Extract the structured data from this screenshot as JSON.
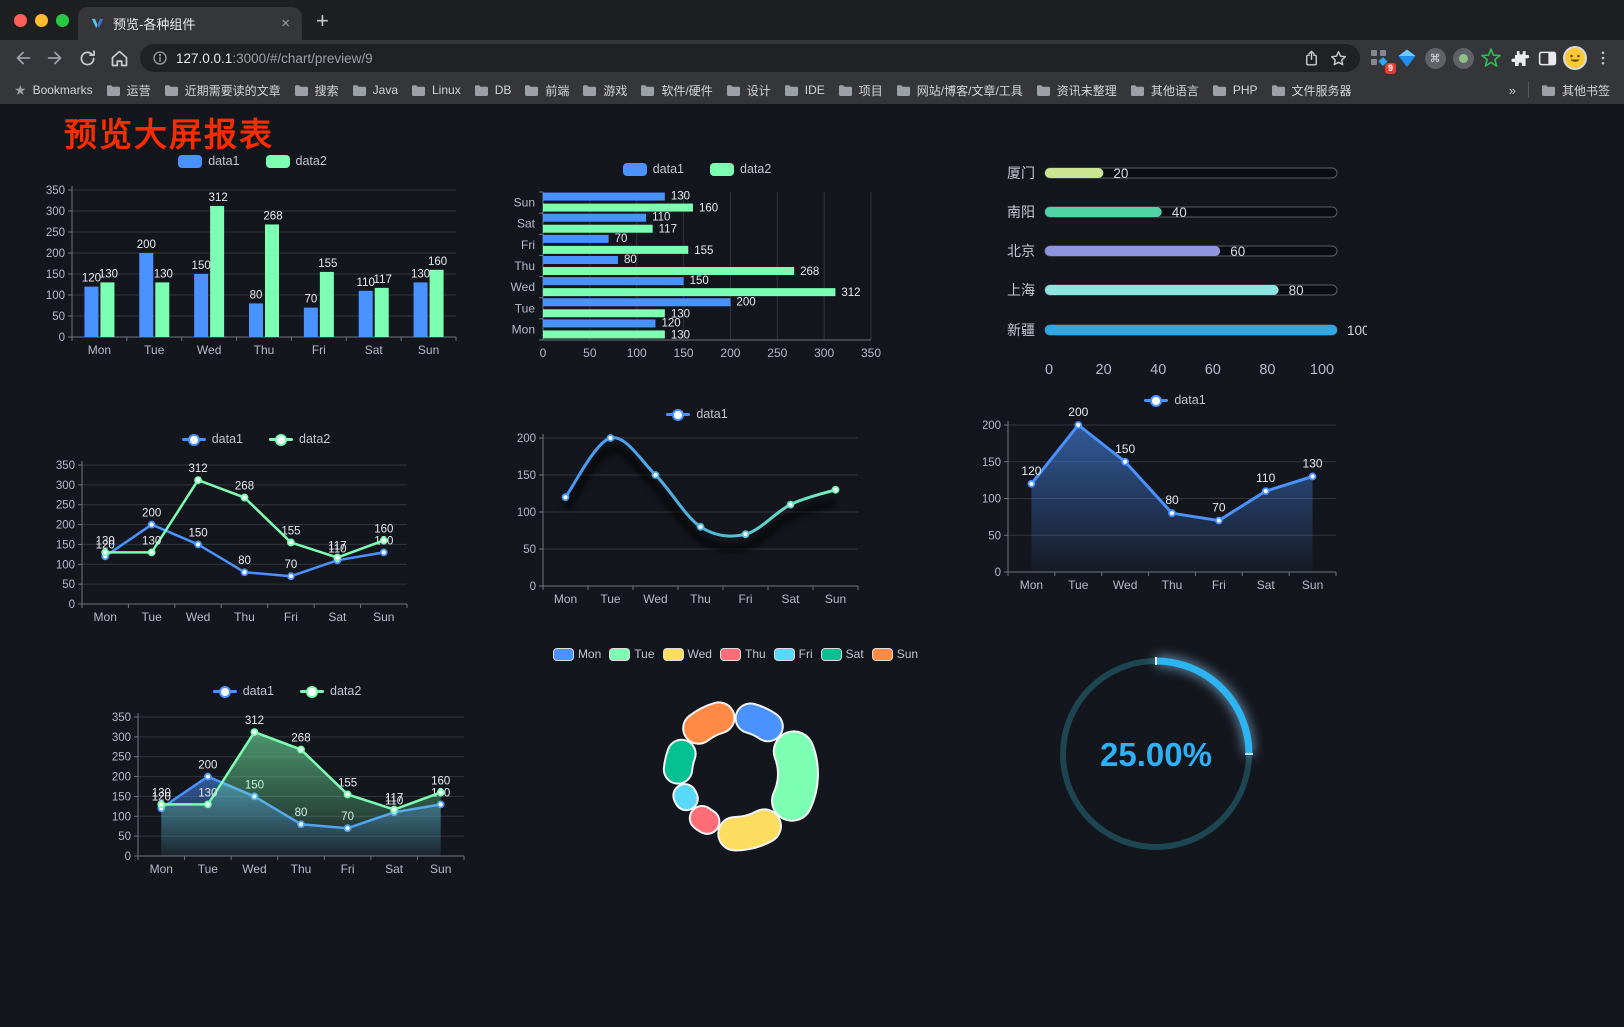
{
  "browser": {
    "tab": {
      "title": "预览-各种组件",
      "close_label": "×",
      "new_tab_label": "+"
    },
    "url": {
      "host": "127.0.0.1",
      "rest": ":3000/#/chart/preview/9"
    },
    "extension_badge": "9",
    "bookmarks_bar": {
      "root_label": "Bookmarks",
      "folders": [
        "运营",
        "近期需要读的文章",
        "搜索",
        "Java",
        "Linux",
        "DB",
        "前端",
        "游戏",
        "软件/硬件",
        "设计",
        "IDE",
        "项目",
        "网站/博客/文章/工具",
        "资讯未整理",
        "其他语言",
        "PHP",
        "文件服务器"
      ],
      "overflow": "»",
      "other_bookmarks": "其他书签"
    }
  },
  "page": {
    "title": "预览大屏报表"
  },
  "colors": {
    "background": "#14161d",
    "grid": "#32353f",
    "axis": "#6f7380",
    "axis_label": "#b9b8ce",
    "value_label": "#e9e9f0",
    "title_red": "#f92b01",
    "series_blue": "#4992ff",
    "series_green": "#7cffb2"
  },
  "chart_data": [
    {
      "id": "bar-vertical",
      "type": "bar",
      "categories": [
        "Mon",
        "Tue",
        "Wed",
        "Thu",
        "Fri",
        "Sat",
        "Sun"
      ],
      "series": [
        {
          "name": "data1",
          "color": "#4992ff",
          "values": [
            120,
            200,
            150,
            80,
            70,
            110,
            130
          ]
        },
        {
          "name": "data2",
          "color": "#7cffb2",
          "values": [
            130,
            130,
            312,
            268,
            155,
            117,
            160
          ]
        }
      ],
      "ylim": [
        0,
        350
      ],
      "yticks": [
        0,
        50,
        100,
        150,
        200,
        250,
        300,
        350
      ],
      "grid": true,
      "legend_position": "top",
      "data_labels": true
    },
    {
      "id": "bar-horizontal",
      "type": "bar",
      "orientation": "horizontal",
      "categories": [
        "Mon",
        "Tue",
        "Wed",
        "Thu",
        "Fri",
        "Sat",
        "Sun"
      ],
      "category_order_top_to_bottom": [
        "Sun",
        "Sat",
        "Fri",
        "Thu",
        "Wed",
        "Tue",
        "Mon"
      ],
      "series": [
        {
          "name": "data1",
          "color": "#4992ff",
          "values": [
            120,
            200,
            150,
            80,
            70,
            110,
            130
          ]
        },
        {
          "name": "data2",
          "color": "#7cffb2",
          "values": [
            130,
            130,
            312,
            268,
            155,
            117,
            160
          ]
        }
      ],
      "xlim": [
        0,
        350
      ],
      "xticks": [
        0,
        50,
        100,
        150,
        200,
        250,
        300,
        350
      ],
      "grid": true,
      "legend_position": "top",
      "data_labels": true
    },
    {
      "id": "progress-list",
      "type": "bar",
      "style": "pill-progress",
      "items": [
        {
          "label": "厦门",
          "value": 20,
          "color": "#cbe593"
        },
        {
          "label": "南阳",
          "value": 40,
          "color": "#51d3a5"
        },
        {
          "label": "北京",
          "value": 60,
          "color": "#8f96de"
        },
        {
          "label": "上海",
          "value": 80,
          "color": "#8fe3e0"
        },
        {
          "label": "新疆",
          "value": 100,
          "color": "#2fa7e4"
        }
      ],
      "xlim": [
        0,
        100
      ],
      "xticks": [
        0,
        20,
        40,
        60,
        80,
        100
      ]
    },
    {
      "id": "line-dual",
      "type": "line",
      "categories": [
        "Mon",
        "Tue",
        "Wed",
        "Thu",
        "Fri",
        "Sat",
        "Sun"
      ],
      "series": [
        {
          "name": "data1",
          "color": "#4992ff",
          "values": [
            120,
            200,
            150,
            80,
            70,
            110,
            130
          ]
        },
        {
          "name": "data2",
          "color": "#7cffb2",
          "values": [
            130,
            130,
            312,
            268,
            155,
            117,
            160
          ]
        }
      ],
      "ylim": [
        0,
        350
      ],
      "yticks": [
        0,
        50,
        100,
        150,
        200,
        250,
        300,
        350
      ],
      "grid": true,
      "legend_position": "top",
      "data_labels": true,
      "markers": true
    },
    {
      "id": "line-gradient",
      "type": "line",
      "categories": [
        "Mon",
        "Tue",
        "Wed",
        "Thu",
        "Fri",
        "Sat",
        "Sun"
      ],
      "series": [
        {
          "name": "data1",
          "gradient": [
            "#4992ff",
            "#7cffb2"
          ],
          "values": [
            120,
            200,
            150,
            80,
            70,
            110,
            130
          ]
        }
      ],
      "ylim": [
        0,
        200
      ],
      "yticks": [
        0,
        50,
        100,
        150,
        200
      ],
      "smooth": true,
      "shadow": true,
      "grid": true,
      "legend_position": "top",
      "data_labels": false,
      "markers": true
    },
    {
      "id": "area-single",
      "type": "area",
      "categories": [
        "Mon",
        "Tue",
        "Wed",
        "Thu",
        "Fri",
        "Sat",
        "Sun"
      ],
      "series": [
        {
          "name": "data1",
          "color": "#4992ff",
          "values": [
            120,
            200,
            150,
            80,
            70,
            110,
            130
          ]
        }
      ],
      "ylim": [
        0,
        200
      ],
      "yticks": [
        0,
        50,
        100,
        150,
        200
      ],
      "grid": true,
      "legend_position": "top",
      "data_labels": true,
      "markers": true
    },
    {
      "id": "area-dual",
      "type": "area",
      "categories": [
        "Mon",
        "Tue",
        "Wed",
        "Thu",
        "Fri",
        "Sat",
        "Sun"
      ],
      "series": [
        {
          "name": "data1",
          "color": "#4992ff",
          "values": [
            120,
            200,
            150,
            80,
            70,
            110,
            130
          ]
        },
        {
          "name": "data2",
          "color": "#7cffb2",
          "values": [
            130,
            130,
            312,
            268,
            155,
            117,
            160
          ]
        }
      ],
      "ylim": [
        0,
        350
      ],
      "yticks": [
        0,
        50,
        100,
        150,
        200,
        250,
        300,
        350
      ],
      "grid": true,
      "legend_position": "top",
      "data_labels": true,
      "markers": true
    },
    {
      "id": "pie-rose",
      "type": "pie",
      "categories": [
        "Mon",
        "Tue",
        "Wed",
        "Thu",
        "Fri",
        "Sat",
        "Sun"
      ],
      "values": [
        120,
        200,
        150,
        80,
        70,
        110,
        130
      ],
      "colors": [
        "#4992ff",
        "#7cffb2",
        "#fddd60",
        "#ff6e76",
        "#58d9f9",
        "#05c091",
        "#ff8a45"
      ],
      "donut": true,
      "rose": true,
      "legend_position": "top"
    },
    {
      "id": "gauge",
      "type": "gauge",
      "value": 25,
      "display": "25.00%",
      "progress_color": "#2cb5f2",
      "track_color": "#1d4652",
      "text_color": "#2fb0f5"
    }
  ]
}
